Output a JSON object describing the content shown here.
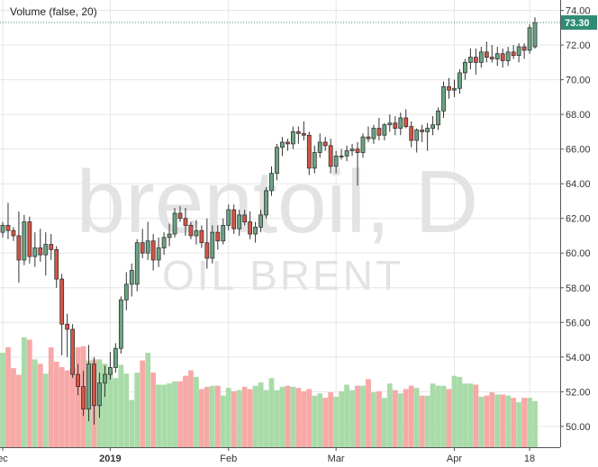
{
  "watermark": {
    "symbol": "brentoil, D",
    "description": "OIL BRENT"
  },
  "study_label": "Volume (false, 20)",
  "last_price_label": "73.30",
  "colors": {
    "up_body": "#6ba583",
    "down_body": "#d75442",
    "wick": "#333333",
    "vol_up": "#a9dba9",
    "vol_down": "#f7a9a7",
    "grid": "#e6e6e6",
    "axis": "#555555",
    "last_price_bg": "#2e8b74",
    "last_price_line": "#2e8b74",
    "watermark": "#e3e3e3"
  },
  "chart_data": {
    "type": "candlestick",
    "ylim": [
      48.8,
      74.6
    ],
    "y_ticks": [
      "50.00",
      "52.00",
      "54.00",
      "56.00",
      "58.00",
      "60.00",
      "62.00",
      "64.00",
      "66.00",
      "68.00",
      "70.00",
      "72.00",
      "74.00"
    ],
    "x_ticks": [
      "ec",
      "2019",
      "Feb",
      "Mar",
      "Apr",
      "18"
    ],
    "x_tick_index": [
      0,
      20,
      42,
      62,
      84,
      98
    ],
    "last_price": 73.3,
    "ohlc": [
      [
        61.2,
        61.8,
        60.9,
        61.6
      ],
      [
        61.6,
        62.9,
        60.8,
        61.3
      ],
      [
        61.3,
        61.5,
        60.7,
        61.0
      ],
      [
        61.0,
        62.4,
        58.3,
        59.6
      ],
      [
        59.6,
        62.2,
        59.3,
        61.8
      ],
      [
        61.8,
        62.1,
        59.4,
        59.8
      ],
      [
        59.8,
        61.2,
        59.2,
        60.3
      ],
      [
        60.3,
        61.4,
        59.5,
        59.9
      ],
      [
        59.9,
        61.2,
        58.7,
        60.5
      ],
      [
        60.5,
        61.1,
        59.6,
        60.2
      ],
      [
        60.2,
        60.4,
        58.0,
        58.5
      ],
      [
        58.5,
        58.8,
        54.1,
        55.9
      ],
      [
        55.9,
        56.5,
        54.0,
        55.6
      ],
      [
        55.6,
        55.9,
        52.8,
        53.0
      ],
      [
        53.0,
        53.6,
        51.8,
        52.3
      ],
      [
        52.3,
        53.2,
        50.6,
        51.0
      ],
      [
        51.0,
        54.7,
        50.3,
        53.6
      ],
      [
        53.6,
        54.0,
        50.1,
        51.2
      ],
      [
        51.2,
        53.1,
        50.5,
        52.5
      ],
      [
        52.5,
        53.5,
        51.7,
        53.0
      ],
      [
        53.0,
        54.3,
        52.7,
        53.4
      ],
      [
        53.4,
        54.8,
        53.1,
        54.5
      ],
      [
        54.5,
        57.5,
        54.2,
        57.3
      ],
      [
        57.3,
        58.9,
        56.7,
        58.2
      ],
      [
        58.2,
        59.4,
        57.5,
        59.0
      ],
      [
        58.2,
        60.8,
        57.8,
        60.6
      ],
      [
        60.6,
        61.4,
        59.7,
        60.0
      ],
      [
        60.0,
        61.8,
        59.6,
        60.7
      ],
      [
        60.7,
        61.1,
        59.0,
        59.6
      ],
      [
        59.6,
        60.9,
        59.2,
        60.3
      ],
      [
        60.3,
        61.2,
        59.9,
        60.9
      ],
      [
        60.9,
        61.7,
        60.4,
        61.1
      ],
      [
        61.1,
        62.6,
        60.9,
        62.3
      ],
      [
        62.3,
        62.7,
        61.8,
        62.0
      ],
      [
        62.0,
        62.6,
        61.0,
        61.6
      ],
      [
        61.6,
        61.8,
        60.8,
        61.0
      ],
      [
        61.0,
        61.9,
        60.5,
        61.3
      ],
      [
        61.3,
        61.6,
        60.3,
        60.6
      ],
      [
        60.6,
        62.0,
        59.1,
        59.7
      ],
      [
        59.7,
        61.6,
        59.4,
        61.2
      ],
      [
        61.2,
        61.6,
        60.2,
        60.7
      ],
      [
        60.7,
        62.0,
        60.5,
        61.6
      ],
      [
        61.6,
        62.8,
        61.3,
        62.5
      ],
      [
        62.5,
        62.8,
        61.1,
        61.4
      ],
      [
        61.4,
        62.5,
        61.0,
        62.2
      ],
      [
        62.2,
        62.5,
        61.6,
        61.8
      ],
      [
        61.8,
        62.4,
        60.8,
        61.1
      ],
      [
        61.1,
        61.8,
        60.6,
        61.5
      ],
      [
        61.5,
        62.5,
        61.2,
        62.2
      ],
      [
        62.2,
        63.8,
        62.0,
        63.6
      ],
      [
        63.6,
        65.0,
        63.3,
        64.6
      ],
      [
        64.6,
        66.3,
        64.2,
        66.1
      ],
      [
        66.1,
        66.7,
        65.6,
        66.4
      ],
      [
        66.4,
        66.6,
        65.9,
        66.3
      ],
      [
        66.3,
        67.3,
        66.0,
        67.0
      ],
      [
        67.0,
        67.3,
        66.3,
        66.9
      ],
      [
        66.9,
        67.6,
        66.5,
        66.8
      ],
      [
        66.8,
        67.0,
        64.5,
        64.9
      ],
      [
        64.9,
        66.2,
        64.6,
        65.8
      ],
      [
        65.8,
        66.9,
        65.5,
        66.4
      ],
      [
        66.4,
        66.7,
        65.9,
        66.2
      ],
      [
        66.2,
        66.6,
        64.6,
        65.0
      ],
      [
        65.0,
        65.9,
        64.6,
        65.6
      ],
      [
        65.6,
        66.0,
        65.4,
        65.6
      ],
      [
        65.6,
        66.2,
        65.3,
        65.9
      ],
      [
        65.9,
        66.3,
        65.6,
        66.0
      ],
      [
        66.0,
        66.4,
        63.9,
        65.8
      ],
      [
        65.8,
        66.9,
        65.5,
        66.7
      ],
      [
        66.7,
        67.3,
        66.4,
        66.6
      ],
      [
        66.6,
        67.4,
        66.3,
        67.2
      ],
      [
        67.2,
        67.8,
        66.5,
        66.8
      ],
      [
        66.8,
        67.5,
        66.5,
        67.4
      ],
      [
        67.4,
        68.0,
        67.0,
        67.5
      ],
      [
        67.5,
        67.9,
        66.8,
        67.2
      ],
      [
        67.2,
        68.1,
        66.8,
        67.8
      ],
      [
        67.8,
        68.3,
        67.2,
        67.3
      ],
      [
        67.3,
        67.6,
        66.1,
        66.5
      ],
      [
        66.5,
        67.2,
        65.8,
        67.1
      ],
      [
        67.1,
        67.4,
        66.4,
        67.0
      ],
      [
        67.0,
        67.5,
        65.9,
        67.2
      ],
      [
        67.2,
        67.9,
        66.8,
        67.4
      ],
      [
        67.4,
        68.4,
        67.1,
        68.2
      ],
      [
        68.2,
        69.9,
        67.8,
        69.6
      ],
      [
        69.6,
        70.1,
        68.9,
        69.4
      ],
      [
        69.4,
        70.0,
        69.0,
        69.5
      ],
      [
        69.5,
        70.6,
        69.2,
        70.4
      ],
      [
        70.4,
        71.2,
        70.0,
        71.0
      ],
      [
        71.0,
        71.8,
        70.6,
        71.3
      ],
      [
        71.3,
        71.8,
        70.3,
        71.0
      ],
      [
        71.0,
        71.9,
        70.7,
        71.6
      ],
      [
        71.6,
        72.2,
        71.0,
        71.3
      ],
      [
        71.3,
        72.0,
        71.0,
        71.2
      ],
      [
        71.2,
        71.9,
        70.8,
        71.5
      ],
      [
        71.5,
        71.8,
        70.7,
        71.1
      ],
      [
        71.1,
        71.9,
        70.8,
        71.6
      ],
      [
        71.6,
        72.0,
        71.2,
        71.4
      ],
      [
        71.4,
        72.1,
        71.0,
        71.9
      ],
      [
        71.9,
        72.1,
        71.2,
        71.7
      ],
      [
        71.7,
        73.2,
        71.5,
        73.0
      ],
      [
        71.9,
        73.6,
        71.8,
        73.3
      ]
    ],
    "volume": [
      0.86,
      0.91,
      0.72,
      0.66,
      1.0,
      0.98,
      0.8,
      0.76,
      0.67,
      0.91,
      0.78,
      0.73,
      0.7,
      0.72,
      0.91,
      0.92,
      0.79,
      0.8,
      0.8,
      0.76,
      0.69,
      0.63,
      0.75,
      0.67,
      0.43,
      0.68,
      0.79,
      0.86,
      0.68,
      0.57,
      0.57,
      0.58,
      0.6,
      0.6,
      0.65,
      0.7,
      0.64,
      0.53,
      0.55,
      0.56,
      0.56,
      0.47,
      0.54,
      0.51,
      0.52,
      0.55,
      0.53,
      0.56,
      0.59,
      0.52,
      0.63,
      0.52,
      0.55,
      0.56,
      0.55,
      0.54,
      0.51,
      0.53,
      0.47,
      0.49,
      0.45,
      0.5,
      0.46,
      0.51,
      0.57,
      0.52,
      0.56,
      0.56,
      0.62,
      0.5,
      0.51,
      0.45,
      0.58,
      0.52,
      0.49,
      0.53,
      0.56,
      0.54,
      0.47,
      0.47,
      0.58,
      0.56,
      0.56,
      0.53,
      0.65,
      0.64,
      0.58,
      0.58,
      0.57,
      0.46,
      0.47,
      0.5,
      0.48,
      0.48,
      0.47,
      0.45,
      0.41,
      0.45,
      0.45,
      0.42,
      0.4
    ]
  }
}
